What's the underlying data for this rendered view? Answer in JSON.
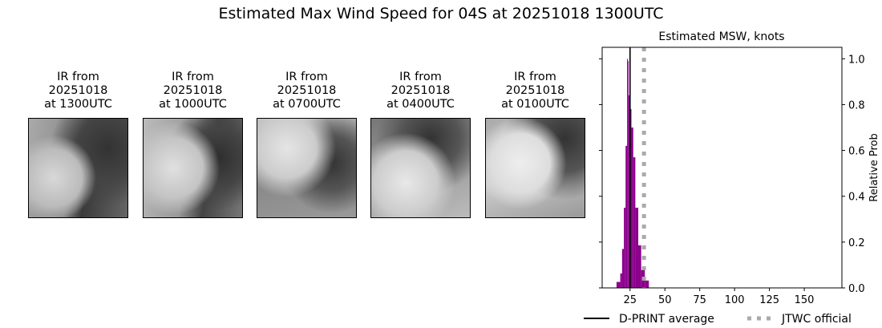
{
  "title": "Estimated Max Wind Speed for 04S at 20251018 1300UTC",
  "panels": [
    {
      "caption": "IR from\n20251018\nat 1300UTC"
    },
    {
      "caption": "IR from\n20251018\nat 1000UTC"
    },
    {
      "caption": "IR from\n20251018\nat 0700UTC"
    },
    {
      "caption": "IR from\n20251018\nat 0400UTC"
    },
    {
      "caption": "IR from\n20251018\nat 0100UTC"
    }
  ],
  "chart_data": {
    "type": "bar",
    "title": "Estimated MSW, knots",
    "xlabel": "",
    "ylabel": "Relative Prob",
    "xlim": [
      5,
      177
    ],
    "ylim": [
      0,
      1.05
    ],
    "xticks": [
      25,
      50,
      75,
      100,
      125,
      150
    ],
    "yticks": [
      0.0,
      0.2,
      0.4,
      0.6,
      0.8,
      1.0
    ],
    "ytick_position": "right",
    "bar_color": "#8b008b",
    "bins": [
      {
        "left": 15.3,
        "right": 18.0,
        "value": 0.026
      },
      {
        "left": 18.0,
        "right": 19.3,
        "value": 0.063
      },
      {
        "left": 19.3,
        "right": 20.6,
        "value": 0.17
      },
      {
        "left": 20.6,
        "right": 21.8,
        "value": 0.35
      },
      {
        "left": 21.8,
        "right": 22.9,
        "value": 0.62
      },
      {
        "left": 22.9,
        "right": 23.5,
        "value": 1.0
      },
      {
        "left": 23.5,
        "right": 24.0,
        "value": 0.99
      },
      {
        "left": 24.0,
        "right": 24.6,
        "value": 0.84
      },
      {
        "left": 24.6,
        "right": 26.0,
        "value": 0.78
      },
      {
        "left": 26.0,
        "right": 27.3,
        "value": 0.7
      },
      {
        "left": 27.3,
        "right": 28.8,
        "value": 0.57
      },
      {
        "left": 28.8,
        "right": 30.9,
        "value": 0.35
      },
      {
        "left": 30.9,
        "right": 33.0,
        "value": 0.186
      },
      {
        "left": 33.0,
        "right": 35.6,
        "value": 0.078
      },
      {
        "left": 35.6,
        "right": 38.5,
        "value": 0.032
      }
    ],
    "vlines": [
      {
        "name": "D-PRINT average",
        "x": 25,
        "color": "#000000",
        "style": "solid"
      },
      {
        "name": "JTWC official",
        "x": 35,
        "color": "#aaaaaa",
        "style": "dotted"
      }
    ],
    "legend": "bottom"
  }
}
